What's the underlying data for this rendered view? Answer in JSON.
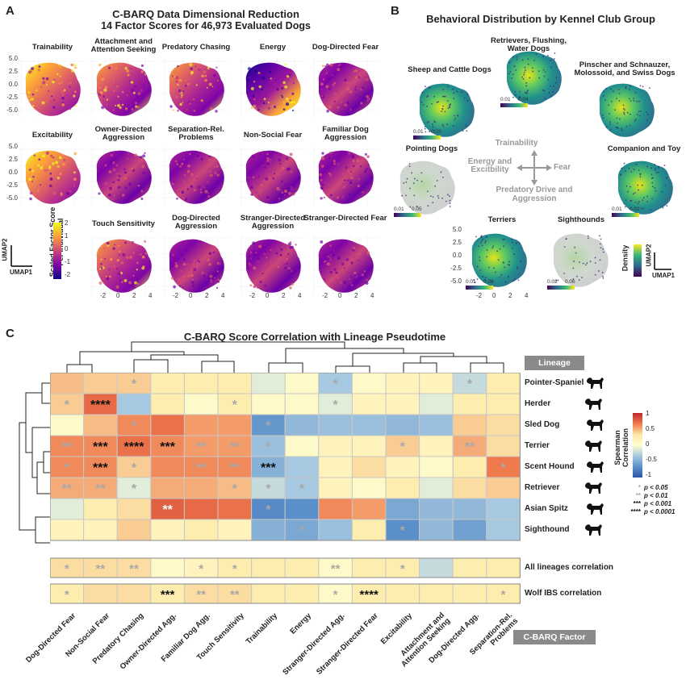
{
  "panel_a": {
    "letter": "A",
    "title": "C-BARQ Data Dimensional Reduction",
    "subtitle": "14 Factor Scores for 46,973 Evaluated Dogs",
    "maps": [
      {
        "name": "Trainability",
        "style": "warm"
      },
      {
        "name": "Attachment and Attention Seeking",
        "style": "mixed"
      },
      {
        "name": "Predatory Chasing",
        "style": "mixed"
      },
      {
        "name": "Energy",
        "style": "energy"
      },
      {
        "name": "Dog-Directed Fear",
        "style": "cool"
      },
      {
        "name": "Excitability",
        "style": "warm"
      },
      {
        "name": "Owner-Directed Aggression",
        "style": "cool"
      },
      {
        "name": "Separation-Rel. Problems",
        "style": "cool"
      },
      {
        "name": "Non-Social Fear",
        "style": "cool"
      },
      {
        "name": "Familiar Dog Aggression",
        "style": "cool"
      },
      {
        "name": "Touch Sensitivity",
        "style": "mixed"
      },
      {
        "name": "Dog-Directed Aggression",
        "style": "cool"
      },
      {
        "name": "Stranger-Directed Aggression",
        "style": "cool"
      },
      {
        "name": "Stranger-Directed Fear",
        "style": "cool"
      }
    ],
    "y_ticks": [
      "5.0",
      "2.5",
      "0.0",
      "-2.5",
      "-5.0"
    ],
    "x_ticks": [
      "-2",
      "0",
      "2",
      "4"
    ],
    "axis_y": "UMAP2",
    "axis_x": "UMAP1",
    "colorbar_label": "Scaled Factor Score Per Individual",
    "colorbar_ticks": [
      "2",
      "1",
      "0",
      "-1",
      "-2"
    ]
  },
  "panel_b": {
    "letter": "B",
    "title": "Behavioral Distribution by Kennel Club Group",
    "groups": [
      {
        "name": "Sheep and Cattle Dogs",
        "lo": "0.01",
        "hi": "0.03",
        "style": "dense"
      },
      {
        "name": "Retrievers, Flushing, Water Dogs",
        "lo": "0.01",
        "hi": "0.04",
        "style": "dense"
      },
      {
        "name": "Pinscher and Schnauzer, Molossoid, and Swiss Dogs",
        "lo": "",
        "hi": "",
        "style": "dense"
      },
      {
        "name": "Pointing Dogs",
        "lo": "0.01",
        "hi": "0.05",
        "style": "sparse"
      },
      {
        "name": "Companion and Toy",
        "lo": "0.01",
        "hi": "0.02",
        "style": "dense"
      },
      {
        "name": "Terriers",
        "lo": "0.01",
        "hi": "0.03",
        "style": "dense"
      },
      {
        "name": "Sighthounds",
        "lo": "0.02",
        "hi": "0.06",
        "style": "sparse"
      }
    ],
    "compass": {
      "up": "Trainability",
      "left": "Energy and Excitbility",
      "right": "Fear",
      "down": "Predatory Drive and Aggression"
    },
    "y_ticks": [
      "5.0",
      "2.5",
      "0.0",
      "-2.5",
      "-5.0"
    ],
    "x_ticks": [
      "-2",
      "0",
      "2",
      "4"
    ],
    "density_label": "Density",
    "axis_y": "UMAP2",
    "axis_x": "UMAP1"
  },
  "panel_c": {
    "letter": "C",
    "title": "C-BARQ Score Correlation with Lineage Pseudotime",
    "lineage_tag": "Lineage",
    "factor_tag": "C-BARQ Factor",
    "legend_title": "Spearman Correlation",
    "legend_ticks": [
      "1",
      "0.5",
      "0",
      "-0.5",
      "-1"
    ],
    "sig_legend": [
      {
        "mark": "*",
        "text": "p < 0.05"
      },
      {
        "mark": "**",
        "text": "p < 0.01"
      },
      {
        "mark": "***",
        "text": "p < 0.001"
      },
      {
        "mark": "****",
        "text": "p < 0.0001"
      }
    ]
  },
  "chart_data": {
    "type": "heatmap",
    "title": "C-BARQ Score Correlation with Lineage Pseudotime",
    "columns": [
      "Dog-Directed Fear",
      "Non-Social Fear",
      "Predatory Chasing",
      "Owner-Directed Agg.",
      "Familiar Dog Agg.",
      "Touch Sensitivity",
      "Trainability",
      "Energy",
      "Stranger-Directed Agg.",
      "Stranger-Directed Fear",
      "Excitability",
      "Attachment and Attention Seeking",
      "Dog-Directed Agg.",
      "Separation-Rel. Problems"
    ],
    "rows": [
      "Pointer-Spaniel",
      "Herder",
      "Sled Dog",
      "Terrier",
      "Scent Hound",
      "Retriever",
      "Asian Spitz",
      "Sighthound"
    ],
    "values": [
      [
        0.3,
        0.25,
        0.25,
        0.15,
        0.15,
        0.15,
        -0.05,
        0.05,
        -0.15,
        0.05,
        0.1,
        0.1,
        -0.1,
        0.15
      ],
      [
        0.25,
        0.6,
        -0.15,
        0.15,
        0.05,
        0.15,
        0.05,
        0.05,
        -0.05,
        0.1,
        0.1,
        -0.05,
        0.15,
        0.15
      ],
      [
        0.05,
        0.3,
        0.45,
        0.55,
        0.4,
        0.4,
        -0.45,
        -0.25,
        -0.2,
        -0.2,
        -0.25,
        -0.2,
        0.25,
        0.2
      ],
      [
        0.45,
        0.45,
        0.55,
        0.45,
        0.4,
        0.4,
        -0.2,
        0.05,
        0.1,
        0.1,
        0.25,
        0.1,
        0.35,
        0.2
      ],
      [
        0.45,
        0.45,
        0.25,
        0.45,
        0.45,
        0.45,
        -0.3,
        -0.15,
        0.1,
        0.2,
        0.1,
        0.05,
        0.15,
        0.5
      ],
      [
        0.35,
        0.35,
        -0.05,
        0.35,
        0.35,
        0.3,
        -0.1,
        -0.15,
        0.1,
        0.05,
        0.15,
        -0.05,
        0.2,
        0.25
      ],
      [
        -0.05,
        0.15,
        0.2,
        0.65,
        0.6,
        0.55,
        -0.55,
        -0.5,
        0.45,
        0.4,
        -0.35,
        -0.25,
        -0.25,
        -0.15
      ],
      [
        0.1,
        0.1,
        0.25,
        0.1,
        0.15,
        0.1,
        -0.3,
        -0.35,
        -0.2,
        0.15,
        -0.5,
        -0.25,
        -0.4,
        -0.15
      ]
    ],
    "stars": [
      [
        "",
        "",
        "*",
        "",
        "",
        "",
        "",
        "",
        "*",
        "",
        "",
        "",
        "*",
        ""
      ],
      [
        "*",
        "****",
        "",
        "",
        "",
        "*",
        "",
        "",
        "*",
        "",
        "",
        "",
        "",
        ""
      ],
      [
        "",
        "",
        "*",
        "",
        "",
        "",
        "*",
        "",
        "",
        "",
        "",
        "",
        "",
        ""
      ],
      [
        "**",
        "***",
        "****",
        "***",
        "**",
        "**",
        "*",
        "",
        "",
        "",
        "*",
        "",
        "**",
        ""
      ],
      [
        "*",
        "***",
        "*",
        "",
        "**",
        "**",
        "***",
        "",
        "",
        "",
        "",
        "",
        "",
        "*"
      ],
      [
        "**",
        "**",
        "*",
        "",
        "",
        "*",
        "*",
        "*",
        "",
        "",
        "",
        "",
        "",
        ""
      ],
      [
        "",
        "",
        "",
        "**",
        "",
        "",
        "*",
        "",
        "",
        "",
        "",
        "",
        "",
        ""
      ],
      [
        "",
        "",
        "",
        "",
        "",
        "",
        "",
        "*",
        "",
        "",
        "*",
        "",
        "",
        ""
      ]
    ],
    "summary_rows": [
      "All lineages correlation",
      "Wolf IBS correlation"
    ],
    "summary_values": [
      [
        0.2,
        0.2,
        0.2,
        0.05,
        0.1,
        0.15,
        0.15,
        0.15,
        0.05,
        0.15,
        0.15,
        -0.1,
        0.15,
        0.15
      ],
      [
        0.15,
        0.2,
        0.2,
        0.15,
        0.2,
        0.2,
        0.15,
        0.15,
        0.05,
        0.15,
        0.15,
        0.15,
        0.15,
        0.15
      ]
    ],
    "summary_stars": [
      [
        "*",
        "**",
        "**",
        "",
        "*",
        "*",
        "",
        "",
        "**",
        "",
        "*",
        "",
        "",
        ""
      ],
      [
        "*",
        "",
        "",
        "***",
        "**",
        "**",
        "",
        "",
        "*",
        "****",
        "",
        "",
        "",
        "*"
      ]
    ],
    "color_range": [
      -1,
      1
    ]
  }
}
